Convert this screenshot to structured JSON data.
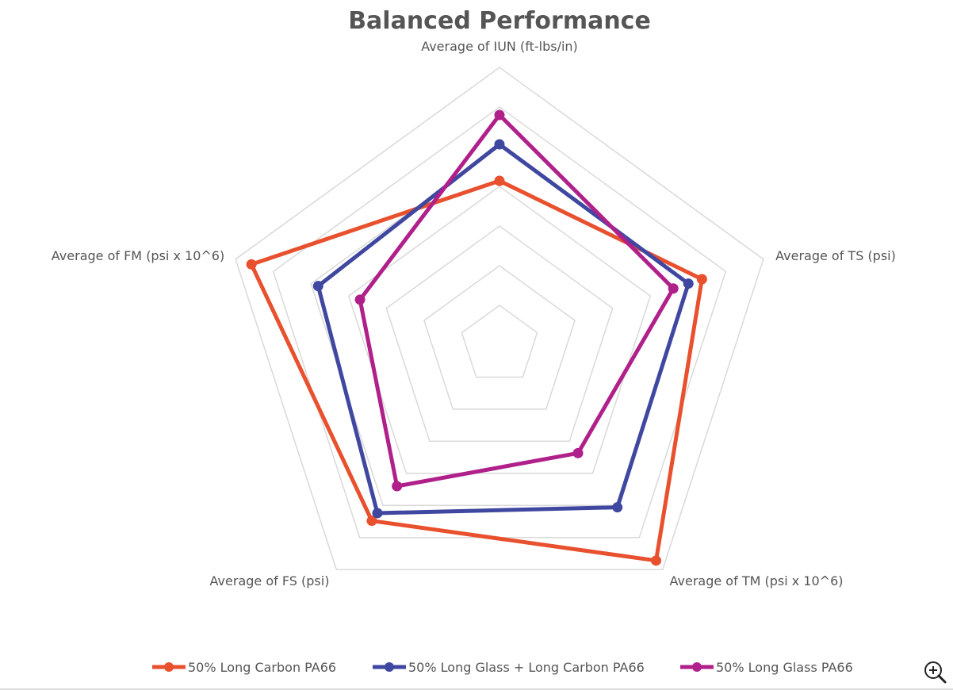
{
  "chart_data": {
    "type": "radar",
    "title": "Balanced Performance",
    "axes": [
      "Average of IUN (ft-lbs/in)",
      "Average of TS (psi)",
      "Average of TM (psi x 10^6)",
      "Average of FS (psi)",
      "Average of FM (psi x 10^6)"
    ],
    "grid_levels": 7,
    "range": [
      0,
      7
    ],
    "grid": true,
    "tick_labels_shown": false,
    "legend_position": "bottom",
    "series": [
      {
        "name": "50% Long Carbon PA66",
        "color": "#E8502E",
        "values": [
          4.14,
          5.37,
          6.72,
          5.48,
          6.58
        ]
      },
      {
        "name": "50% Long Glass + Long Carbon PA66",
        "color": "#3F47A0",
        "values": [
          5.06,
          5.01,
          5.06,
          5.24,
          4.81
        ]
      },
      {
        "name": "50% Long Glass PA66",
        "color": "#B0208A",
        "values": [
          5.8,
          4.61,
          3.37,
          4.4,
          3.7
        ]
      }
    ]
  },
  "toolbar": {
    "zoom_icon": "zoom-in-icon"
  }
}
